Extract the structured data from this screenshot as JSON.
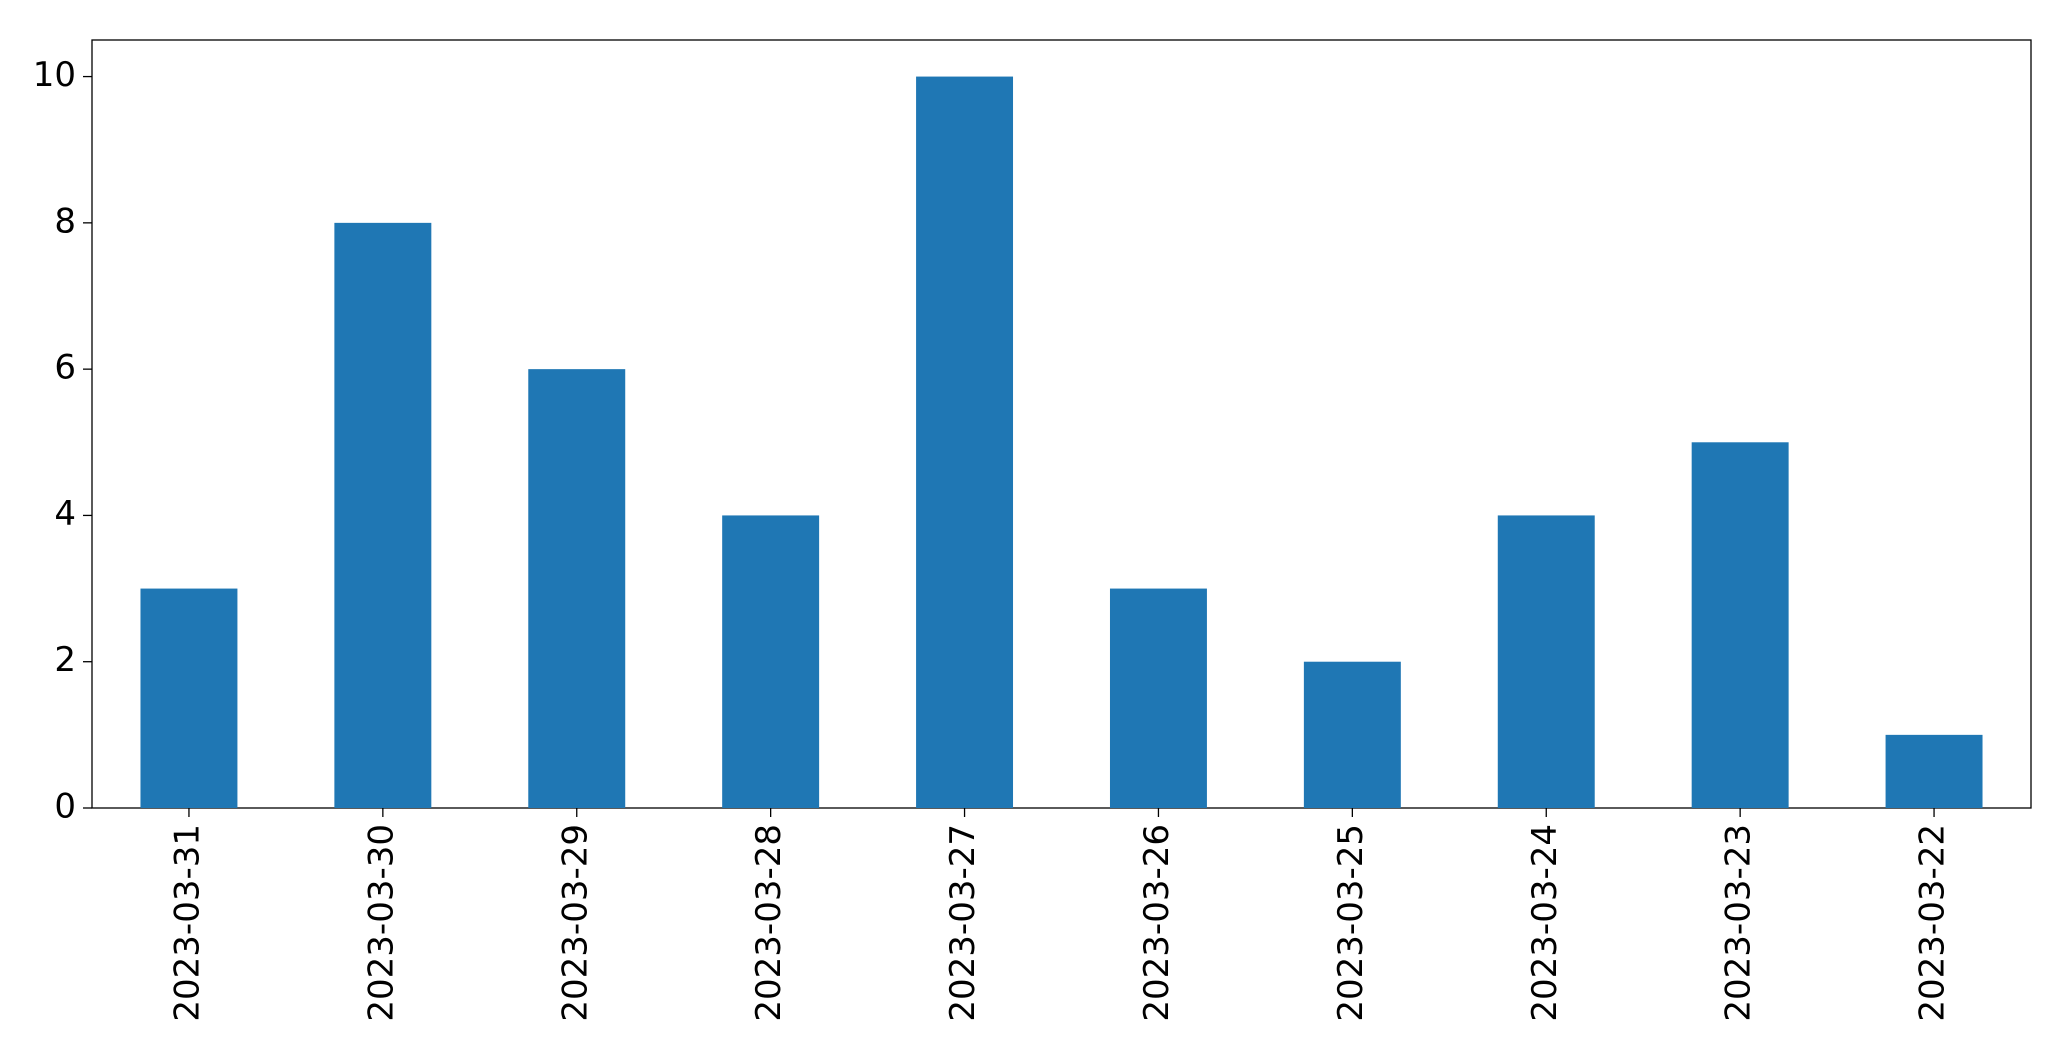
{
  "chart_data": {
    "type": "bar",
    "categories": [
      "2023-03-31",
      "2023-03-30",
      "2023-03-29",
      "2023-03-28",
      "2023-03-27",
      "2023-03-26",
      "2023-03-25",
      "2023-03-24",
      "2023-03-23",
      "2023-03-22"
    ],
    "values": [
      3,
      8,
      6,
      4,
      10,
      3,
      2,
      4,
      5,
      1
    ],
    "color": "#1f77b4",
    "ylim": [
      0,
      10.5
    ],
    "yticks": [
      0,
      2,
      4,
      6,
      8,
      10
    ],
    "grid": false
  }
}
